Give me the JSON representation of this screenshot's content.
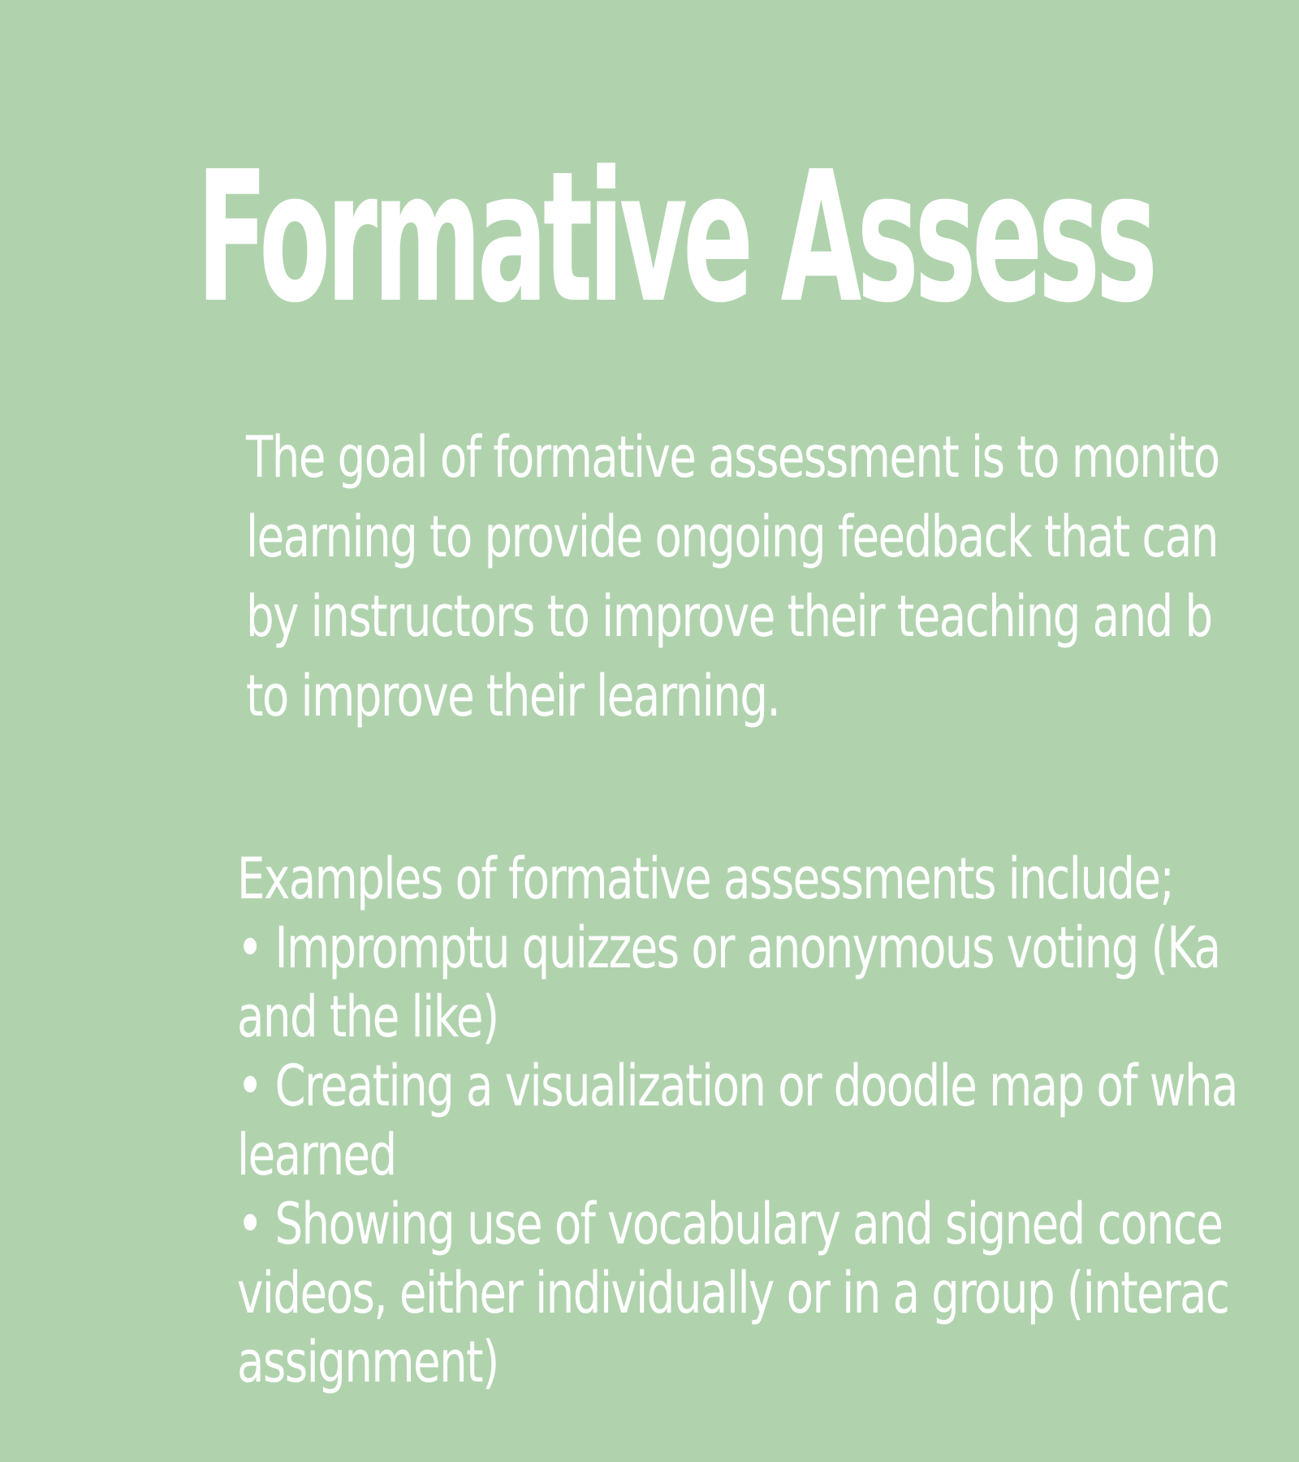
{
  "title": "Formative Assess",
  "intro": {
    "lines": [
      "The goal of formative assessment is to monito",
      "learning to provide ongoing feedback that can",
      "by instructors to improve their teaching and b",
      "to improve their learning."
    ]
  },
  "examples": {
    "lines": [
      "Examples of formative assessments include;",
      "• Impromptu quizzes or anonymous voting (Ka",
      "and the like)",
      "• Creating a visualization or doodle map of wha",
      "learned",
      "• Showing use of vocabulary and signed conce",
      "videos, either individually or in a group (interac",
      "assignment)"
    ]
  },
  "colors": {
    "background": "#b0d3ae",
    "text": "#ffffff"
  }
}
